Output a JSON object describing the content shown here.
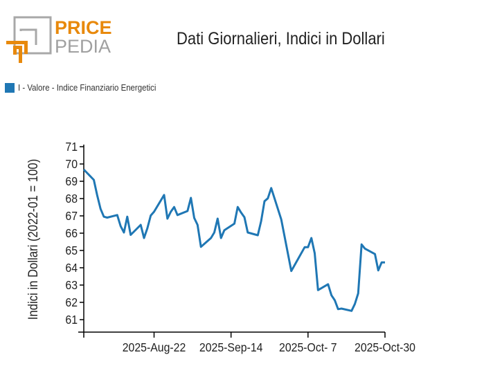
{
  "logo": {
    "line1": "PRICE",
    "line2": "PEDIA"
  },
  "colors": {
    "series": "#1f77b4",
    "logo_orange": "#e8890c",
    "logo_gray": "#a0a0a0"
  },
  "chart_data": {
    "type": "line",
    "title": "Dati Giornalieri, Indici in Dollari",
    "xlabel": "",
    "ylabel": "Indici in Dollari (2022-01 = 100)",
    "xlim": [
      "2025-08-01",
      "2025-10-30"
    ],
    "ylim": [
      60.3,
      71
    ],
    "x_ticks": [
      {
        "date": "2025-08-01",
        "label": ""
      },
      {
        "date": "2025-08-22",
        "label": "2025-Aug-22"
      },
      {
        "date": "2025-09-14",
        "label": "2025-Sep-14"
      },
      {
        "date": "2025-10-07",
        "label": "2025-Oct- 7"
      },
      {
        "date": "2025-10-30",
        "label": "2025-Oct-30"
      }
    ],
    "y_ticks": [
      "61",
      "62",
      "63",
      "64",
      "65",
      "66",
      "67",
      "68",
      "69",
      "70",
      "71"
    ],
    "legend": {
      "position": "top-left",
      "entries": [
        "I - Valore - Indice Finanziario Energetici"
      ]
    },
    "series": [
      {
        "name": "I - Valore - Indice Finanziario Energetici",
        "x": [
          "2025-08-01",
          "2025-08-04",
          "2025-08-05",
          "2025-08-06",
          "2025-08-07",
          "2025-08-08",
          "2025-08-11",
          "2025-08-12",
          "2025-08-13",
          "2025-08-14",
          "2025-08-15",
          "2025-08-18",
          "2025-08-19",
          "2025-08-20",
          "2025-08-21",
          "2025-08-22",
          "2025-08-25",
          "2025-08-26",
          "2025-08-27",
          "2025-08-28",
          "2025-08-29",
          "2025-09-01",
          "2025-09-02",
          "2025-09-03",
          "2025-09-04",
          "2025-09-05",
          "2025-09-08",
          "2025-09-09",
          "2025-09-10",
          "2025-09-11",
          "2025-09-12",
          "2025-09-15",
          "2025-09-16",
          "2025-09-17",
          "2025-09-18",
          "2025-09-19",
          "2025-09-22",
          "2025-09-23",
          "2025-09-24",
          "2025-09-25",
          "2025-09-26",
          "2025-09-29",
          "2025-10-02",
          "2025-10-06",
          "2025-10-07",
          "2025-10-08",
          "2025-10-09",
          "2025-10-10",
          "2025-10-13",
          "2025-10-14",
          "2025-10-15",
          "2025-10-16",
          "2025-10-17",
          "2025-10-20",
          "2025-10-21",
          "2025-10-22",
          "2025-10-23",
          "2025-10-24",
          "2025-10-27",
          "2025-10-28",
          "2025-10-29",
          "2025-10-30"
        ],
        "values": [
          69.68,
          69.08,
          68.2,
          67.41,
          66.95,
          66.9,
          67.05,
          66.41,
          66.04,
          66.95,
          65.9,
          66.48,
          65.72,
          66.28,
          67.02,
          67.24,
          68.21,
          66.84,
          67.24,
          67.51,
          67.05,
          67.28,
          68.04,
          66.88,
          66.48,
          65.21,
          65.72,
          66.04,
          66.84,
          65.72,
          66.17,
          66.55,
          67.51,
          67.19,
          66.92,
          66.04,
          65.88,
          66.71,
          67.85,
          68.01,
          68.61,
          66.79,
          63.81,
          65.19,
          65.19,
          65.72,
          64.84,
          62.71,
          63.05,
          62.41,
          62.12,
          61.61,
          61.64,
          61.51,
          61.91,
          62.52,
          65.35,
          65.11,
          64.79,
          63.85,
          64.31,
          64.31
        ]
      }
    ]
  }
}
